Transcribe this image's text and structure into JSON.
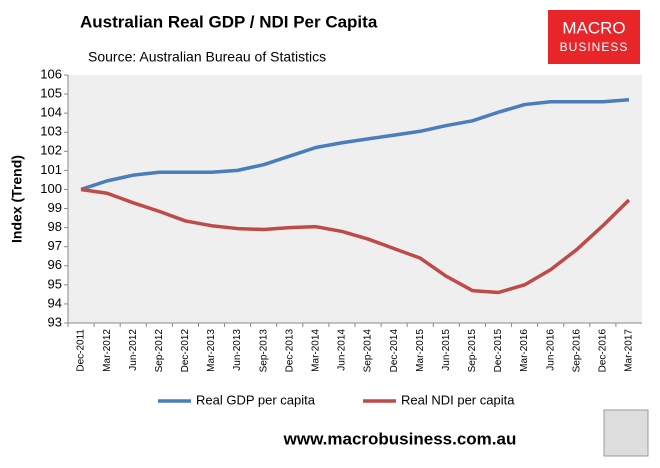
{
  "chart_data": {
    "type": "line",
    "title": "Australian Real GDP / NDI Per Capita",
    "subtitle": "Source: Australian Bureau of Statistics",
    "logo": [
      "MACRO",
      "BUSINESS"
    ],
    "footer": "www.macrobusiness.com.au",
    "y_label": "Index (Trend)",
    "categories": [
      "Dec-2011",
      "Mar-2012",
      "Jun-2012",
      "Sep-2012",
      "Dec-2012",
      "Mar-2013",
      "Jun-2013",
      "Sep-2013",
      "Dec-2013",
      "Mar-2014",
      "Jun-2014",
      "Sep-2014",
      "Dec-2014",
      "Mar-2015",
      "Jun-2015",
      "Sep-2015",
      "Dec-2015",
      "Mar-2016",
      "Jun-2016",
      "Sep-2016",
      "Dec-2016",
      "Mar-2017"
    ],
    "series": [
      {
        "name": "Real GDP per capita",
        "color": "#4a7ebb",
        "values": [
          100,
          100.45,
          100.75,
          100.9,
          100.9,
          100.9,
          101.0,
          101.3,
          101.75,
          102.2,
          102.45,
          102.65,
          102.85,
          103.05,
          103.35,
          103.6,
          104.05,
          104.45,
          104.6,
          104.6,
          104.6,
          104.7
        ]
      },
      {
        "name": "Real NDI per capita",
        "color": "#be4b48",
        "values": [
          100,
          99.8,
          99.3,
          98.85,
          98.35,
          98.1,
          97.95,
          97.9,
          98.0,
          98.05,
          97.8,
          97.4,
          96.9,
          96.4,
          95.45,
          94.7,
          94.6,
          95.0,
          95.8,
          96.85,
          98.1,
          99.45
        ]
      }
    ],
    "ylim": [
      93,
      106
    ],
    "yticks": [
      93,
      94,
      95,
      96,
      97,
      98,
      99,
      100,
      101,
      102,
      103,
      104,
      105,
      106
    ],
    "grid": false
  }
}
